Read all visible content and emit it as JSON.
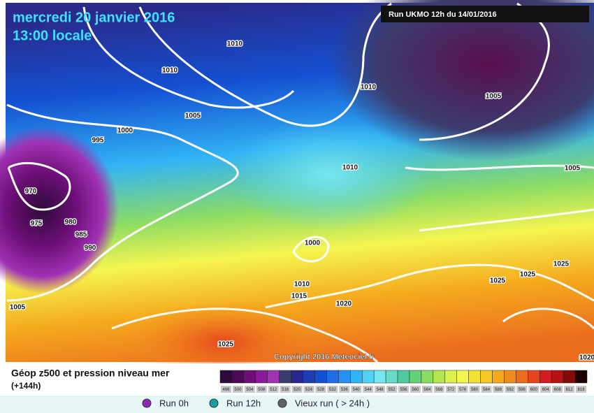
{
  "header": {
    "date": "mercredi 20 janvier 2016",
    "time": "13:00 locale",
    "run": "Run UKMO 12h du 14/01/2016"
  },
  "map": {
    "isobars": [
      1010,
      1010,
      1010,
      1005,
      1005,
      1000,
      995,
      1010,
      1005,
      970,
      975,
      980,
      985,
      990,
      1000,
      1025,
      1025,
      1025,
      1010,
      1015,
      1020,
      1005,
      1025,
      1020
    ],
    "copyright": "Copyright 2016 Meteociel.fr"
  },
  "legend": {
    "title": "Géop z500 et pression niveau mer",
    "subtitle": "(+144h)",
    "values": [
      496,
      500,
      504,
      508,
      512,
      516,
      520,
      524,
      528,
      532,
      536,
      540,
      544,
      548,
      552,
      556,
      560,
      564,
      568,
      572,
      576,
      580,
      584,
      588,
      592,
      596,
      600,
      604,
      608,
      612,
      616
    ],
    "colors": [
      "#2e0a3a",
      "#4b0a55",
      "#6e0f78",
      "#8a1a9a",
      "#a032b4",
      "#3c3c6e",
      "#28288c",
      "#1e3cb4",
      "#1450d2",
      "#1e6ee6",
      "#2890f0",
      "#32b4f5",
      "#50d2f5",
      "#78e6f0",
      "#64dcc8",
      "#50c8a0",
      "#64d278",
      "#8cdc64",
      "#b4e650",
      "#dcf050",
      "#f5f550",
      "#f5e132",
      "#f5c828",
      "#f5aa1e",
      "#f08c1e",
      "#eb6e1e",
      "#e6461e",
      "#d21e1e",
      "#b41414",
      "#820a0a",
      "#1e0000"
    ]
  },
  "options": [
    {
      "label": "Run 0h",
      "color": "#8a2ab4"
    },
    {
      "label": "Run 12h",
      "color": "#1aa0a0"
    },
    {
      "label": "Vieux run ( > 24h )",
      "color": "#606060"
    }
  ]
}
